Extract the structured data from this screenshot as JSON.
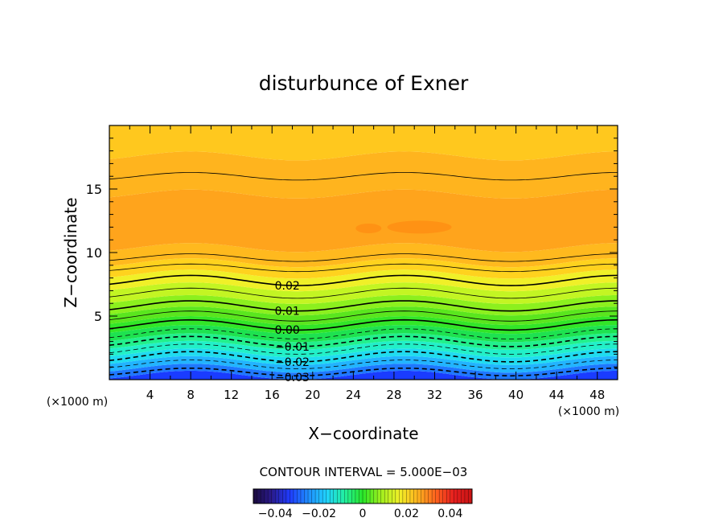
{
  "chart_data": {
    "type": "heatmap",
    "title": "disturbunce of Exner",
    "xlabel": "X−coordinate",
    "ylabel": "Z−coordinate",
    "x_unit_left": "(×1000 m)",
    "x_unit_right": "(×1000 m)",
    "xlim": [
      0,
      50
    ],
    "ylim": [
      0,
      20
    ],
    "x_ticks": [
      "4",
      "8",
      "12",
      "16",
      "20",
      "24",
      "28",
      "32",
      "36",
      "40",
      "44",
      "48"
    ],
    "y_ticks": [
      "5",
      "10",
      "15"
    ],
    "contour_interval_label": "CONTOUR INTERVAL = 5.000E−03",
    "contour_interval": 0.005,
    "contour_labels": [
      {
        "text": "0.02",
        "value": 0.02,
        "x": 17.5,
        "z": 7.8
      },
      {
        "text": "0.01",
        "value": 0.01,
        "x": 17.5,
        "z": 5.8
      },
      {
        "text": "0.00",
        "value": 0.0,
        "x": 17.5,
        "z": 4.3
      },
      {
        "text": "−0.01",
        "value": -0.01,
        "x": 18.0,
        "z": 3.0
      },
      {
        "text": "−0.02",
        "value": -0.02,
        "x": 18.0,
        "z": 1.8
      },
      {
        "text": "−0.03",
        "value": -0.03,
        "x": 18.0,
        "z": 0.6
      }
    ],
    "contour_levels": [
      {
        "value": 0.035,
        "z": 16.0,
        "amp": 0.3,
        "solid": true,
        "thick": false
      },
      {
        "value": 0.03,
        "z": 9.6,
        "amp": 0.3,
        "solid": true,
        "thick": false
      },
      {
        "value": 0.025,
        "z": 8.8,
        "amp": 0.3,
        "solid": true,
        "thick": false
      },
      {
        "value": 0.02,
        "z": 7.8,
        "amp": 0.4,
        "solid": true,
        "thick": true
      },
      {
        "value": 0.015,
        "z": 6.8,
        "amp": 0.4,
        "solid": true,
        "thick": false
      },
      {
        "value": 0.01,
        "z": 5.8,
        "amp": 0.4,
        "solid": true,
        "thick": true
      },
      {
        "value": 0.005,
        "z": 5.0,
        "amp": 0.4,
        "solid": true,
        "thick": false
      },
      {
        "value": 0.0,
        "z": 4.3,
        "amp": 0.4,
        "solid": true,
        "thick": true
      },
      {
        "value": -0.005,
        "z": 3.6,
        "amp": 0.4,
        "solid": false,
        "thick": false
      },
      {
        "value": -0.01,
        "z": 3.0,
        "amp": 0.4,
        "solid": false,
        "thick": true
      },
      {
        "value": -0.015,
        "z": 2.4,
        "amp": 0.4,
        "solid": false,
        "thick": false
      },
      {
        "value": -0.02,
        "z": 1.8,
        "amp": 0.4,
        "solid": false,
        "thick": true
      },
      {
        "value": -0.025,
        "z": 1.2,
        "amp": 0.35,
        "solid": false,
        "thick": false
      },
      {
        "value": -0.03,
        "z": 0.6,
        "amp": 0.3,
        "solid": false,
        "thick": true
      }
    ],
    "color_bands": [
      {
        "z0": 0.0,
        "z1": 0.35,
        "color": "#1a3cff"
      },
      {
        "z0": 0.35,
        "z1": 0.9,
        "color": "#1f78ff"
      },
      {
        "z0": 0.9,
        "z1": 1.5,
        "color": "#22b4ff"
      },
      {
        "z0": 1.5,
        "z1": 2.1,
        "color": "#20dcf0"
      },
      {
        "z0": 2.1,
        "z1": 2.7,
        "color": "#22f0c8"
      },
      {
        "z0": 2.7,
        "z1": 3.3,
        "color": "#22f08c"
      },
      {
        "z0": 3.3,
        "z1": 3.95,
        "color": "#1ee250"
      },
      {
        "z0": 3.95,
        "z1": 4.65,
        "color": "#32e628"
      },
      {
        "z0": 4.65,
        "z1": 5.4,
        "color": "#5ae61e"
      },
      {
        "z0": 5.4,
        "z1": 6.3,
        "color": "#8cf01e"
      },
      {
        "z0": 6.3,
        "z1": 7.3,
        "color": "#c3f523"
      },
      {
        "z0": 7.3,
        "z1": 8.3,
        "color": "#f0f028"
      },
      {
        "z0": 8.3,
        "z1": 9.2,
        "color": "#ffd21e"
      },
      {
        "z0": 9.2,
        "z1": 10.4,
        "color": "#ffb91e"
      },
      {
        "z0": 10.4,
        "z1": 14.6,
        "color": "#ffa41c"
      },
      {
        "z0": 14.6,
        "z1": 17.6,
        "color": "#ffb41e"
      },
      {
        "z0": 17.6,
        "z1": 20.0,
        "color": "#ffc81e"
      }
    ],
    "colorbar": {
      "range": [
        -0.05,
        0.05
      ],
      "tick_values": [
        -0.04,
        -0.02,
        0,
        0.02,
        0.04
      ],
      "tick_labels": [
        "−0.04",
        "−0.02",
        "0",
        "0.02",
        "0.04"
      ],
      "colors": [
        "#1a0a3c",
        "#2a1a8c",
        "#1f3cff",
        "#1f8cff",
        "#20d2ff",
        "#22f0a0",
        "#28e628",
        "#a0f01e",
        "#f0f028",
        "#ffb41e",
        "#ff641e",
        "#e61e1e",
        "#c81414"
      ]
    }
  }
}
